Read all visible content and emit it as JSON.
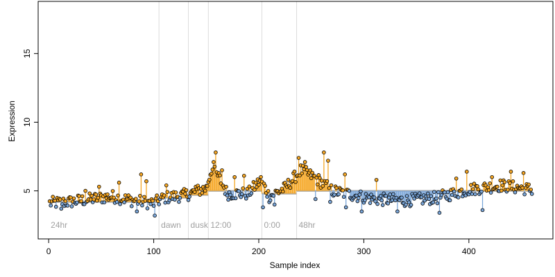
{
  "chart_data": {
    "type": "scatter",
    "title": "",
    "xlabel": "Sample index",
    "ylabel": "Expression",
    "xlim": [
      -10,
      480
    ],
    "ylim": [
      1.5,
      18.8
    ],
    "xticks": [
      0,
      100,
      200,
      300,
      400
    ],
    "yticks": [
      5,
      10,
      15
    ],
    "grid": false,
    "colors": {
      "above": "#f5a623",
      "below": "#7aa6d9",
      "baseline": "#b0b0b0",
      "divider": "#dcdcdc",
      "segment_label": "#a0a0a0",
      "point_stroke": "#000000"
    },
    "segments": [
      {
        "label": "24hr",
        "x": 0,
        "baseline": 4.2
      },
      {
        "label": "dawn",
        "x": 105,
        "baseline": 4.5
      },
      {
        "label": "dusk",
        "x": 133,
        "baseline": 4.7
      },
      {
        "label": "12:00",
        "x": 152,
        "baseline": 5.0
      },
      {
        "label": "0:00",
        "x": 203,
        "baseline": 4.8
      },
      {
        "label": "48hr",
        "x": 236,
        "baseline": 5.0
      }
    ],
    "segment_end": 460,
    "n_points": 460,
    "levels": [
      [
        0,
        4.1
      ],
      [
        20,
        4.2
      ],
      [
        40,
        4.4
      ],
      [
        60,
        4.6
      ],
      [
        80,
        4.3
      ],
      [
        100,
        4.1
      ],
      [
        110,
        4.5
      ],
      [
        130,
        4.7
      ],
      [
        150,
        5.2
      ],
      [
        155,
        6.6
      ],
      [
        162,
        6.0
      ],
      [
        170,
        4.8
      ],
      [
        190,
        4.8
      ],
      [
        202,
        5.8
      ],
      [
        210,
        4.6
      ],
      [
        225,
        5.2
      ],
      [
        240,
        6.5
      ],
      [
        255,
        5.9
      ],
      [
        270,
        5.0
      ],
      [
        290,
        4.7
      ],
      [
        310,
        4.4
      ],
      [
        340,
        4.3
      ],
      [
        370,
        4.5
      ],
      [
        400,
        5.1
      ],
      [
        430,
        5.4
      ],
      [
        460,
        5.1
      ]
    ],
    "noise": 0.45,
    "spikes": [
      {
        "x": 35,
        "y": 5.0
      },
      {
        "x": 48,
        "y": 5.3
      },
      {
        "x": 67,
        "y": 5.6
      },
      {
        "x": 88,
        "y": 6.2
      },
      {
        "x": 93,
        "y": 5.7
      },
      {
        "x": 112,
        "y": 5.4
      },
      {
        "x": 140,
        "y": 5.3
      },
      {
        "x": 157,
        "y": 7.1
      },
      {
        "x": 159,
        "y": 7.8
      },
      {
        "x": 165,
        "y": 6.5
      },
      {
        "x": 177,
        "y": 6.0
      },
      {
        "x": 186,
        "y": 6.1
      },
      {
        "x": 204,
        "y": 6.6
      },
      {
        "x": 238,
        "y": 7.4
      },
      {
        "x": 244,
        "y": 7.1
      },
      {
        "x": 262,
        "y": 7.8
      },
      {
        "x": 266,
        "y": 7.2
      },
      {
        "x": 282,
        "y": 6.2
      },
      {
        "x": 312,
        "y": 5.8
      },
      {
        "x": 388,
        "y": 5.9
      },
      {
        "x": 398,
        "y": 6.4
      },
      {
        "x": 422,
        "y": 6.0
      },
      {
        "x": 440,
        "y": 6.4
      },
      {
        "x": 452,
        "y": 6.3
      }
    ],
    "dips": [
      {
        "x": 12,
        "y": 3.7
      },
      {
        "x": 84,
        "y": 3.5
      },
      {
        "x": 101,
        "y": 3.2
      },
      {
        "x": 204,
        "y": 3.8
      },
      {
        "x": 215,
        "y": 4.0
      },
      {
        "x": 254,
        "y": 4.4
      },
      {
        "x": 268,
        "y": 4.2
      },
      {
        "x": 283,
        "y": 3.8
      },
      {
        "x": 298,
        "y": 3.5
      },
      {
        "x": 332,
        "y": 3.5
      },
      {
        "x": 372,
        "y": 3.4
      },
      {
        "x": 413,
        "y": 3.6
      }
    ]
  }
}
